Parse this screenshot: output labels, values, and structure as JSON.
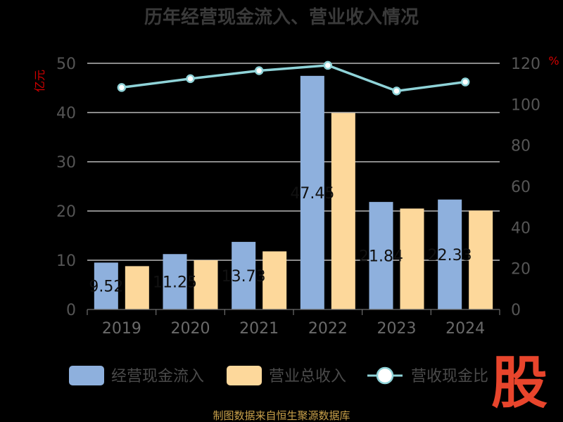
{
  "chart_data": {
    "type": "bar",
    "title": "历年经营现金流入、营业收入情况",
    "categories": [
      "2019",
      "2020",
      "2021",
      "2022",
      "2023",
      "2024"
    ],
    "series": [
      {
        "name": "经营现金流入",
        "axis": "left",
        "type": "bar",
        "color": "#8eb0dd",
        "values": [
          9.52,
          11.25,
          13.73,
          47.45,
          21.84,
          22.33
        ]
      },
      {
        "name": "营业总收入",
        "axis": "left",
        "type": "bar",
        "color": "#fdd89b",
        "values": [
          8.8,
          10.0,
          11.8,
          39.9,
          20.5,
          20.1
        ]
      },
      {
        "name": "营收现金比",
        "axis": "right",
        "type": "line",
        "color": "#8fd3d8",
        "values": [
          108.2,
          112.5,
          116.4,
          119.0,
          106.5,
          110.9
        ]
      }
    ],
    "bar_labels": [
      "9.52",
      "11.25",
      "13.73",
      "47.45",
      "21.84",
      "22.33"
    ],
    "y_left": {
      "unit": "亿元",
      "ylim": [
        0,
        50
      ],
      "ticks": [
        0,
        10,
        20,
        30,
        40,
        50
      ]
    },
    "y_right": {
      "unit": "%",
      "ylim": [
        0,
        120
      ],
      "ticks": [
        0,
        20,
        40,
        60,
        80,
        100,
        120
      ]
    },
    "grid": true,
    "legend_position": "bottom"
  },
  "source": "制图数据来自恒生聚源数据库",
  "logo_text": "股"
}
